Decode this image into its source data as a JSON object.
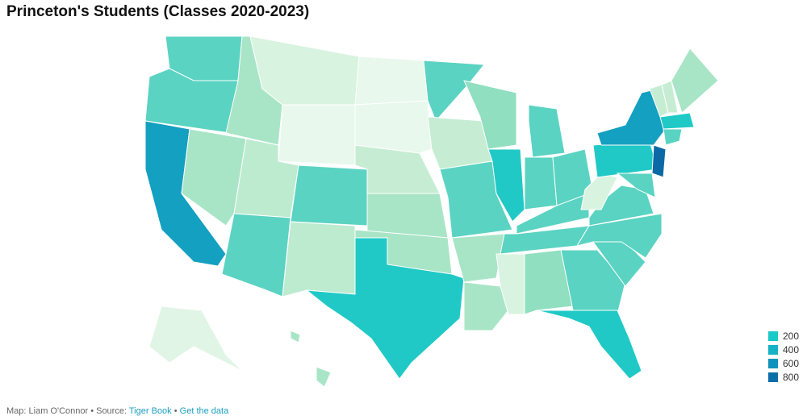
{
  "header": {
    "title": "Princeton's Students (Classes 2020-2023)"
  },
  "legend": {
    "items": [
      {
        "label": "200",
        "color": "#19c9c7"
      },
      {
        "label": "400",
        "color": "#15b2c5"
      },
      {
        "label": "600",
        "color": "#1192bd"
      },
      {
        "label": "800",
        "color": "#0b6ea8"
      }
    ]
  },
  "footer": {
    "credit": "Map: Liam O'Connor • Source:",
    "source_link": "Tiger Book",
    "separator": "•",
    "data_link": "Get the data"
  }
}
